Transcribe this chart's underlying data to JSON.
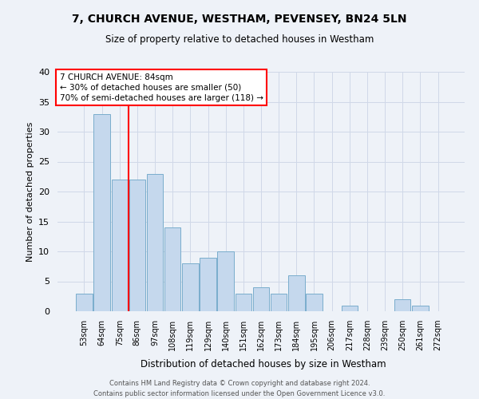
{
  "title": "7, CHURCH AVENUE, WESTHAM, PEVENSEY, BN24 5LN",
  "subtitle": "Size of property relative to detached houses in Westham",
  "xlabel": "Distribution of detached houses by size in Westham",
  "ylabel": "Number of detached properties",
  "bar_labels": [
    "53sqm",
    "64sqm",
    "75sqm",
    "86sqm",
    "97sqm",
    "108sqm",
    "119sqm",
    "129sqm",
    "140sqm",
    "151sqm",
    "162sqm",
    "173sqm",
    "184sqm",
    "195sqm",
    "206sqm",
    "217sqm",
    "228sqm",
    "239sqm",
    "250sqm",
    "261sqm",
    "272sqm"
  ],
  "bar_values": [
    3,
    33,
    22,
    22,
    23,
    14,
    8,
    9,
    10,
    3,
    4,
    3,
    6,
    3,
    0,
    1,
    0,
    0,
    2,
    1,
    0
  ],
  "bar_color": "#c5d8ed",
  "bar_edge_color": "#7aadcc",
  "ylim": [
    0,
    40
  ],
  "yticks": [
    0,
    5,
    10,
    15,
    20,
    25,
    30,
    35,
    40
  ],
  "property_line_idx": 2.5,
  "annotation_line1": "7 CHURCH AVENUE: 84sqm",
  "annotation_line2": "← 30% of detached houses are smaller (50)",
  "annotation_line3": "70% of semi-detached houses are larger (118) →",
  "footer_line1": "Contains HM Land Registry data © Crown copyright and database right 2024.",
  "footer_line2": "Contains public sector information licensed under the Open Government Licence v3.0.",
  "grid_color": "#d0d8e8",
  "background_color": "#eef2f8"
}
